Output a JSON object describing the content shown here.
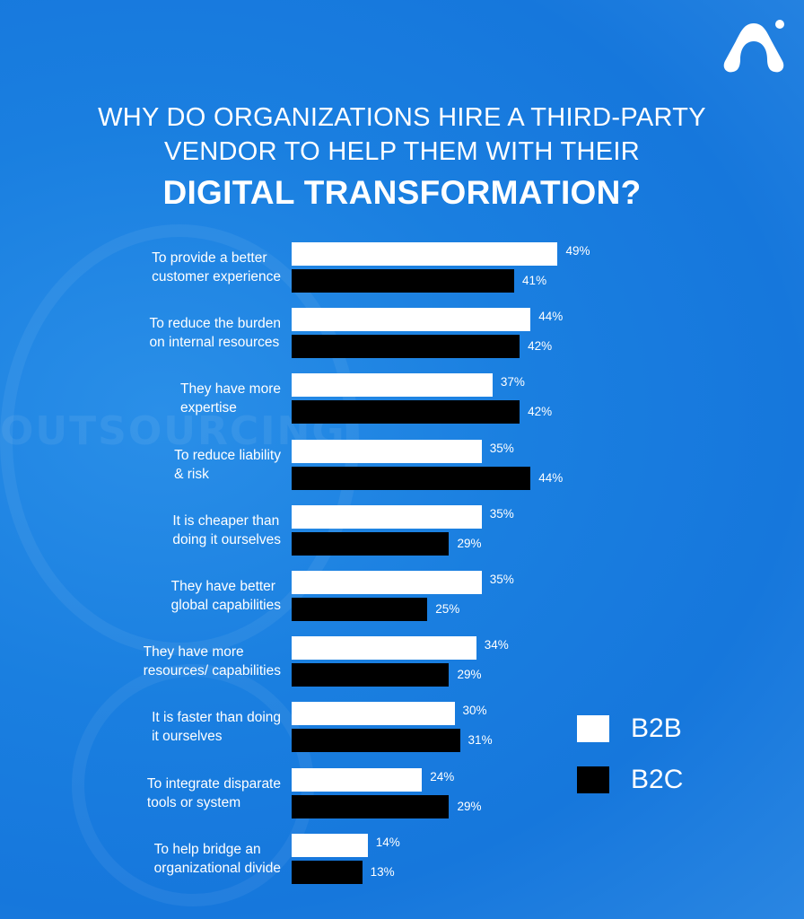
{
  "title": {
    "line1": "WHY DO ORGANIZATIONS HIRE A THIRD-PARTY",
    "line2": "VENDOR TO HELP THEM WITH THEIR",
    "line3": "DIGITAL TRANSFORMATION?"
  },
  "background_watermark": "OUTSOURCING",
  "colors": {
    "background": "#1a7fe0",
    "B2B": "#ffffff",
    "B2C": "#000000"
  },
  "chart_data": {
    "type": "bar",
    "orientation": "horizontal",
    "grid": false,
    "legend_placement": "right",
    "categories": [
      [
        "To provide a better",
        "customer experience"
      ],
      [
        "To reduce the burden",
        "on internal resources"
      ],
      [
        "They have more",
        "expertise"
      ],
      [
        "To reduce liability",
        "& risk"
      ],
      [
        "It is cheaper than",
        "doing it ourselves"
      ],
      [
        "They have better",
        "global capabilities"
      ],
      [
        "They have more",
        "resources/ capabilities"
      ],
      [
        "It is faster than doing",
        "it ourselves"
      ],
      [
        "To integrate disparate",
        "tools or system"
      ],
      [
        "To help bridge an",
        "organizational divide"
      ]
    ],
    "series": [
      {
        "name": "B2B",
        "values": [
          49,
          44,
          37,
          35,
          35,
          35,
          34,
          30,
          24,
          14
        ]
      },
      {
        "name": "B2C",
        "values": [
          41,
          42,
          42,
          44,
          29,
          25,
          29,
          31,
          29,
          13
        ]
      }
    ],
    "unit": "%"
  }
}
